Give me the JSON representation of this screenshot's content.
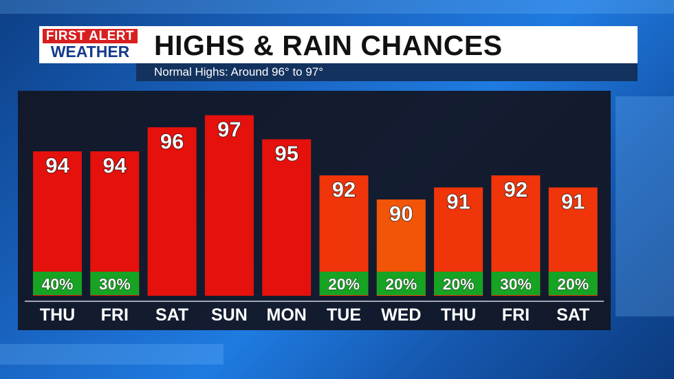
{
  "logo": {
    "line1": "FIRST ALERT",
    "line2": "WEATHER"
  },
  "header": {
    "title": "HIGHS & RAIN CHANCES",
    "subtitle": "Normal Highs: Around 96° to 97°"
  },
  "colors": {
    "hot_bar": "#e5110c",
    "warm_bar": "#f0350a",
    "mild_bar": "#f25408",
    "rain_box": "#17a323",
    "panel": "#151a26",
    "title_bg": "#ffffff",
    "subtitle_bg": "#13325e"
  },
  "chart_data": {
    "type": "bar",
    "title": "HIGHS & RAIN CHANCES",
    "categories": [
      "THU",
      "FRI",
      "SAT",
      "SUN",
      "MON",
      "TUE",
      "WED",
      "THU",
      "FRI",
      "SAT"
    ],
    "series": [
      {
        "name": "High",
        "values": [
          94,
          94,
          96,
          97,
          95,
          92,
          90,
          91,
          92,
          91
        ],
        "unit": "°F"
      },
      {
        "name": "Rain chance",
        "labels": [
          "40%",
          "30%",
          "",
          "",
          "",
          "20%",
          "20%",
          "20%",
          "30%",
          "20%"
        ]
      }
    ],
    "ylim": [
      82,
      98
    ],
    "grid": false,
    "legend": "none"
  }
}
